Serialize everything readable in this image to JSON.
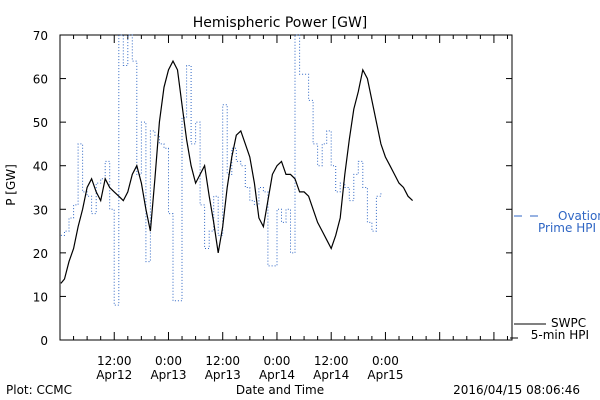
{
  "chart_data": {
    "type": "line",
    "title": "Hemispheric Power [GW]",
    "xlabel": "Date and Time",
    "ylabel": "P [GW]",
    "ylim": [
      0,
      70
    ],
    "xlim": [
      0,
      100
    ],
    "x_ticks": [
      {
        "x": 12,
        "line1": "12:00",
        "line2": "Apr12"
      },
      {
        "x": 24,
        "line1": "0:00",
        "line2": "Apr13"
      },
      {
        "x": 36,
        "line1": "12:00",
        "line2": "Apr13"
      },
      {
        "x": 48,
        "line1": "0:00",
        "line2": "Apr14"
      },
      {
        "x": 60,
        "line1": "12:00",
        "line2": "Apr14"
      },
      {
        "x": 72,
        "line1": "0:00",
        "line2": "Apr15"
      }
    ],
    "y_ticks": [
      0,
      10,
      20,
      30,
      40,
      50,
      60,
      70
    ],
    "grid": false,
    "series": [
      {
        "name": "SWPC 5-min HPI",
        "color": "#000000",
        "style": "solid",
        "points": [
          [
            0.2,
            13
          ],
          [
            1,
            14
          ],
          [
            2,
            18
          ],
          [
            3,
            21
          ],
          [
            4,
            26
          ],
          [
            5,
            30
          ],
          [
            6,
            35
          ],
          [
            7,
            37
          ],
          [
            8,
            34
          ],
          [
            9,
            32
          ],
          [
            10,
            37
          ],
          [
            11,
            35
          ],
          [
            12,
            34
          ],
          [
            13,
            33
          ],
          [
            14,
            32
          ],
          [
            15,
            34
          ],
          [
            16,
            38
          ],
          [
            17,
            40
          ],
          [
            18,
            36
          ],
          [
            19,
            30
          ],
          [
            20,
            25
          ],
          [
            21,
            37
          ],
          [
            22,
            50
          ],
          [
            23,
            58
          ],
          [
            24,
            62
          ],
          [
            25,
            64
          ],
          [
            26,
            62
          ],
          [
            27,
            54
          ],
          [
            28,
            46
          ],
          [
            29,
            40
          ],
          [
            30,
            36
          ],
          [
            31,
            38
          ],
          [
            32,
            40
          ],
          [
            33,
            33
          ],
          [
            34,
            27
          ],
          [
            35,
            20
          ],
          [
            36,
            26
          ],
          [
            37,
            35
          ],
          [
            38,
            42
          ],
          [
            39,
            47
          ],
          [
            40,
            48
          ],
          [
            41,
            45
          ],
          [
            42,
            42
          ],
          [
            43,
            36
          ],
          [
            44,
            28
          ],
          [
            45,
            26
          ],
          [
            46,
            32
          ],
          [
            47,
            38
          ],
          [
            48,
            40
          ],
          [
            49,
            41
          ],
          [
            50,
            38
          ],
          [
            51,
            38
          ],
          [
            52,
            37
          ],
          [
            53,
            34
          ],
          [
            54,
            34
          ],
          [
            55,
            33
          ],
          [
            56,
            30
          ],
          [
            57,
            27
          ],
          [
            58,
            25
          ],
          [
            59,
            23
          ],
          [
            60,
            21
          ],
          [
            61,
            24
          ],
          [
            62,
            28
          ],
          [
            63,
            38
          ],
          [
            64,
            46
          ],
          [
            65,
            53
          ],
          [
            66,
            57
          ],
          [
            67,
            62
          ],
          [
            68,
            60
          ],
          [
            69,
            55
          ],
          [
            70,
            50
          ],
          [
            71,
            45
          ],
          [
            72,
            42
          ],
          [
            73,
            40
          ],
          [
            74,
            38
          ],
          [
            75,
            36
          ],
          [
            76,
            35
          ],
          [
            77,
            33
          ],
          [
            78,
            32
          ]
        ]
      },
      {
        "name": "Ovation Prime HPI",
        "color": "#2f66c4",
        "style": "dotted",
        "points": [
          [
            0.2,
            24
          ],
          [
            1,
            25
          ],
          [
            2,
            28
          ],
          [
            3,
            31
          ],
          [
            4,
            45
          ],
          [
            5,
            34
          ],
          [
            6,
            33
          ],
          [
            7,
            29
          ],
          [
            8,
            36
          ],
          [
            9,
            37
          ],
          [
            10,
            41
          ],
          [
            11,
            30
          ],
          [
            12,
            8
          ],
          [
            13,
            70
          ],
          [
            14,
            63
          ],
          [
            15,
            70
          ],
          [
            16,
            64
          ],
          [
            17,
            38
          ],
          [
            18,
            50
          ],
          [
            19,
            18
          ],
          [
            20,
            48
          ],
          [
            21,
            47
          ],
          [
            22,
            45
          ],
          [
            23,
            44
          ],
          [
            24,
            29
          ],
          [
            25,
            9
          ],
          [
            26,
            9
          ],
          [
            27,
            51
          ],
          [
            28,
            63
          ],
          [
            29,
            45
          ],
          [
            30,
            50
          ],
          [
            31,
            31
          ],
          [
            32,
            21
          ],
          [
            33,
            25
          ],
          [
            34,
            33
          ],
          [
            35,
            24
          ],
          [
            36,
            54
          ],
          [
            37,
            38
          ],
          [
            38,
            44
          ],
          [
            39,
            41
          ],
          [
            40,
            40
          ],
          [
            41,
            35
          ],
          [
            42,
            32
          ],
          [
            43,
            31
          ],
          [
            44,
            35
          ],
          [
            45,
            34
          ],
          [
            46,
            17
          ],
          [
            47,
            17
          ],
          [
            48,
            30
          ],
          [
            49,
            27
          ],
          [
            50,
            30
          ],
          [
            51,
            20
          ],
          [
            52,
            70
          ],
          [
            53,
            61
          ],
          [
            54,
            61
          ],
          [
            55,
            55
          ],
          [
            56,
            45
          ],
          [
            57,
            40
          ],
          [
            58,
            45
          ],
          [
            59,
            48
          ],
          [
            60,
            40
          ],
          [
            61,
            34
          ],
          [
            62,
            36
          ],
          [
            63,
            35
          ],
          [
            64,
            32
          ],
          [
            65,
            38
          ],
          [
            66,
            41
          ],
          [
            67,
            35
          ],
          [
            68,
            27
          ],
          [
            69,
            25
          ],
          [
            70,
            33
          ],
          [
            71,
            34
          ]
        ]
      }
    ]
  },
  "legend": {
    "swpc_line1": "SWPC",
    "swpc_line2": "5-min HPI",
    "ovation_line1": "Ovation",
    "ovation_line2": "Prime HPI"
  },
  "footer": {
    "plot_credit": "Plot: CCMC",
    "timestamp": "2016/04/15 08:06:46"
  }
}
